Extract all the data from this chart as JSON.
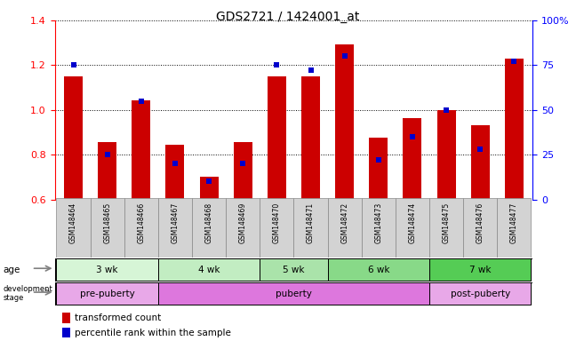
{
  "title": "GDS2721 / 1424001_at",
  "samples": [
    "GSM148464",
    "GSM148465",
    "GSM148466",
    "GSM148467",
    "GSM148468",
    "GSM148469",
    "GSM148470",
    "GSM148471",
    "GSM148472",
    "GSM148473",
    "GSM148474",
    "GSM148475",
    "GSM148476",
    "GSM148477"
  ],
  "transformed_count": [
    1.15,
    0.855,
    1.045,
    0.845,
    0.7,
    0.855,
    1.15,
    1.15,
    1.295,
    0.875,
    0.965,
    1.0,
    0.93,
    1.23
  ],
  "percentile_rank": [
    75,
    25,
    55,
    20,
    10,
    20,
    75,
    72,
    80,
    22,
    35,
    50,
    28,
    77
  ],
  "ylim_left": [
    0.6,
    1.4
  ],
  "ylim_right": [
    0,
    100
  ],
  "yticks_left": [
    0.6,
    0.8,
    1.0,
    1.2,
    1.4
  ],
  "yticks_right": [
    0,
    25,
    50,
    75,
    100
  ],
  "ytick_labels_right": [
    "0",
    "25",
    "50",
    "75",
    "100%"
  ],
  "bar_color": "#cc0000",
  "percentile_color": "#0000cc",
  "background_color": "#ffffff",
  "age_groups": [
    {
      "label": "3 wk",
      "start": 0,
      "end": 3
    },
    {
      "label": "4 wk",
      "start": 3,
      "end": 6
    },
    {
      "label": "5 wk",
      "start": 6,
      "end": 8
    },
    {
      "label": "6 wk",
      "start": 8,
      "end": 11
    },
    {
      "label": "7 wk",
      "start": 11,
      "end": 14
    }
  ],
  "age_colors": [
    "#d6f5d6",
    "#c2edc2",
    "#aae3aa",
    "#88d988",
    "#55cc55"
  ],
  "dev_groups": [
    {
      "label": "pre-puberty",
      "start": 0,
      "end": 3
    },
    {
      "label": "puberty",
      "start": 3,
      "end": 11
    },
    {
      "label": "post-puberty",
      "start": 11,
      "end": 14
    }
  ],
  "dev_colors": [
    "#e8a8e8",
    "#dd77dd",
    "#e8a8e8"
  ]
}
